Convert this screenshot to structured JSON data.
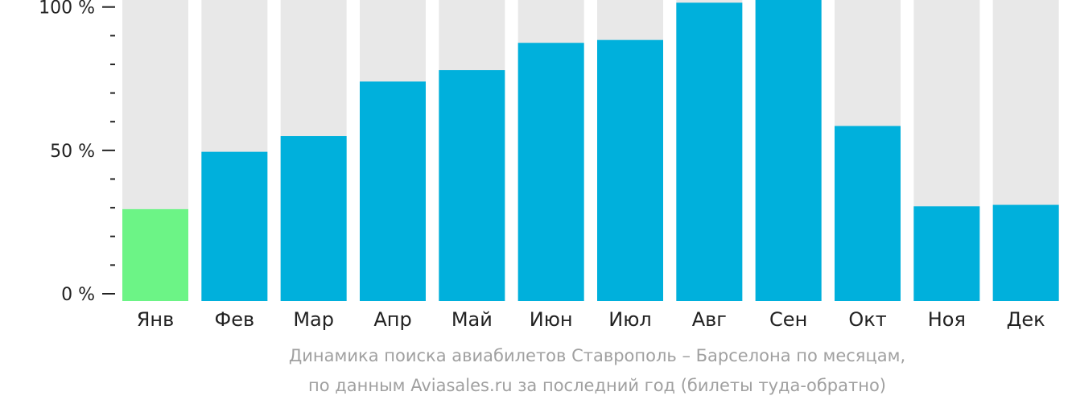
{
  "chart_data": {
    "type": "bar",
    "categories": [
      "Янв",
      "Фев",
      "Мар",
      "Апр",
      "Май",
      "Июн",
      "Июл",
      "Авг",
      "Сен",
      "Окт",
      "Ноя",
      "Дек"
    ],
    "values": [
      29.5,
      49.5,
      55,
      74,
      78,
      87.5,
      88.5,
      101.5,
      102.5,
      58.5,
      30.5,
      31
    ],
    "ylim": [
      0,
      102.5
    ],
    "yticks": [
      {
        "value": 0,
        "label": "0 %"
      },
      {
        "value": 50,
        "label": "50 %"
      },
      {
        "value": 100,
        "label": "100 %"
      }
    ],
    "minor_tick_step": 10,
    "highlight_index": 0,
    "colors": {
      "bar": "#00b0dc",
      "highlight": "#6cf486",
      "track": "#e8e8e8",
      "axis_text": "#222222",
      "tick": "#222222"
    },
    "caption": [
      "Динамика поиска авиабилетов Ставрополь – Барселона по месяцам,",
      "по данным Aviasales.ru за последний год (билеты туда-обратно)"
    ]
  }
}
